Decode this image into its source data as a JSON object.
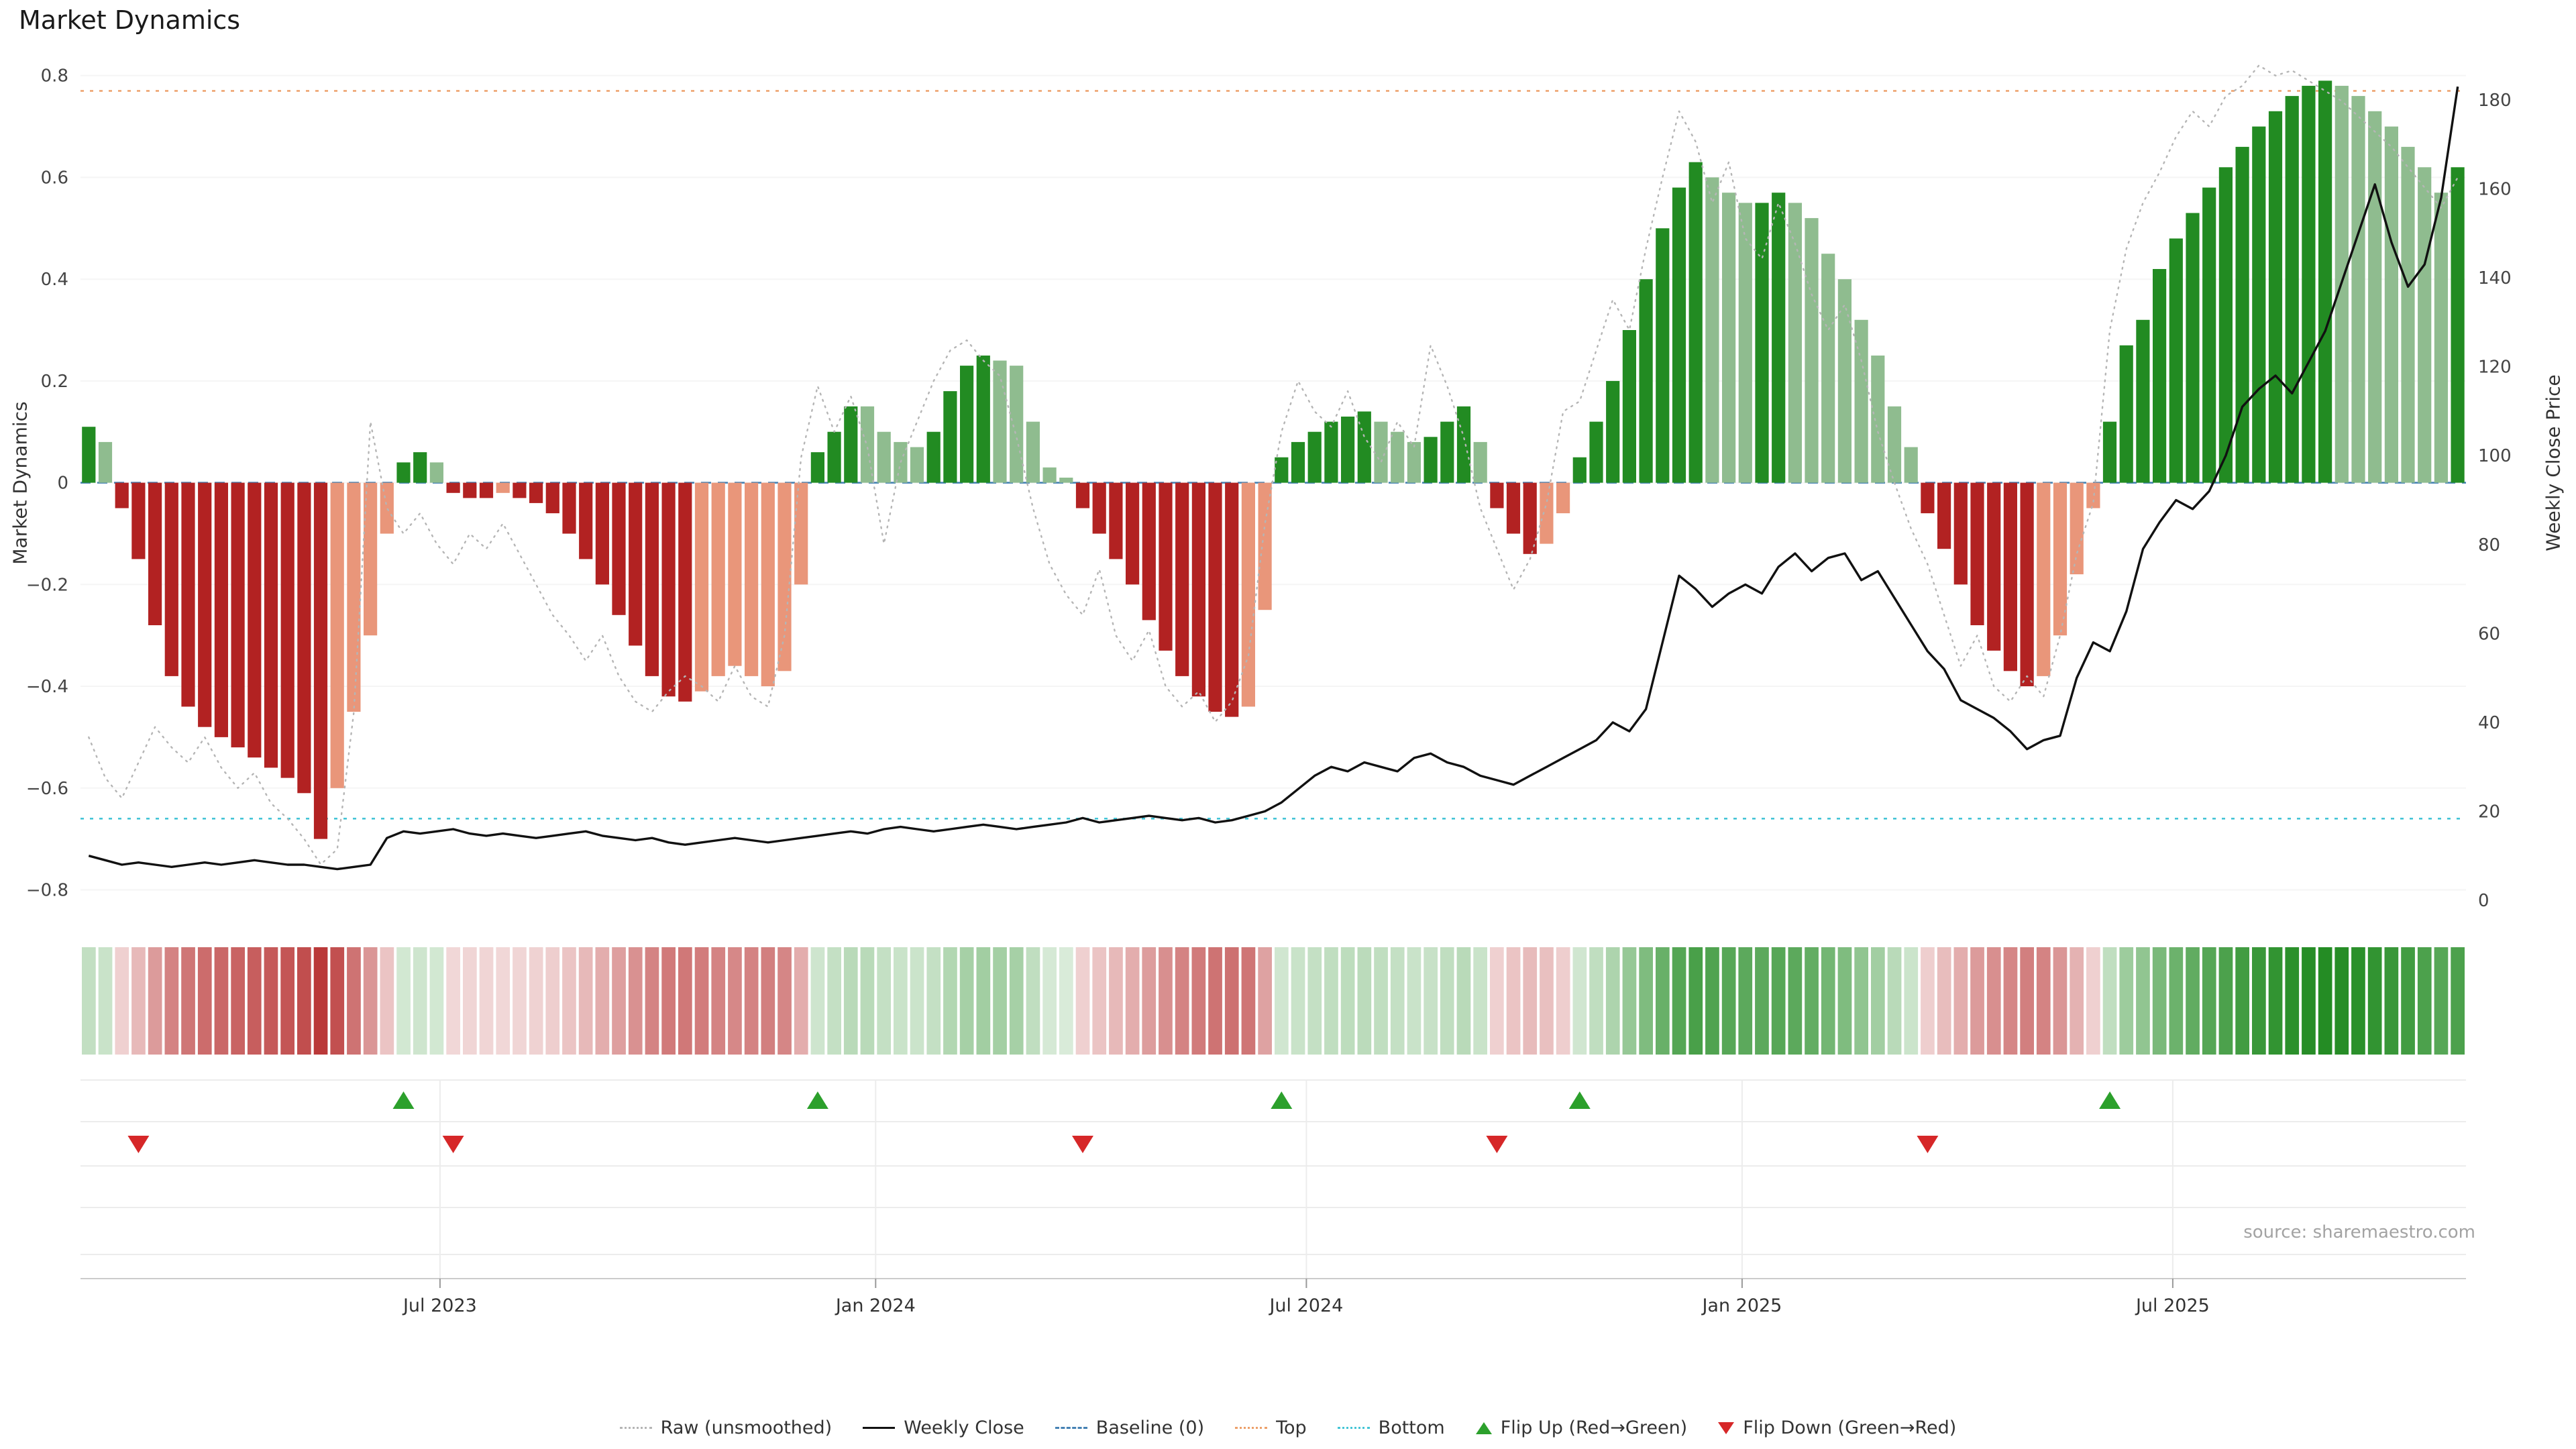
{
  "title": "Market Dynamics",
  "source": "source: sharemaestro.com",
  "axes": {
    "left_label": "Market Dynamics",
    "right_label": "Weekly Close Price",
    "left_ticks": [
      {
        "v": 0.8,
        "label": "0.8"
      },
      {
        "v": 0.6,
        "label": "0.6"
      },
      {
        "v": 0.4,
        "label": "0.4"
      },
      {
        "v": 0.2,
        "label": "0.2"
      },
      {
        "v": 0.0,
        "label": "0"
      },
      {
        "v": -0.2,
        "label": "−0.2"
      },
      {
        "v": -0.4,
        "label": "−0.4"
      },
      {
        "v": -0.6,
        "label": "−0.6"
      },
      {
        "v": -0.8,
        "label": "−0.8"
      }
    ],
    "right_ticks": [
      0,
      20,
      40,
      60,
      80,
      100,
      120,
      140,
      160,
      180
    ],
    "x_ticks": [
      {
        "week": 21.2,
        "label": "Jul 2023"
      },
      {
        "week": 47.5,
        "label": "Jan 2024"
      },
      {
        "week": 73.5,
        "label": "Jul 2024"
      },
      {
        "week": 99.8,
        "label": "Jan 2025"
      },
      {
        "week": 125.8,
        "label": "Jul 2025"
      }
    ]
  },
  "colors": {
    "dg": "#228b22",
    "lg": "#8fbc8f",
    "dr": "#b22222",
    "lr": "#e9967a",
    "raw_line": "#b5b5b5",
    "price_line": "#111111",
    "baseline": "#4682b4",
    "top": "#eda06a",
    "bottom": "#45c5d6",
    "flip_up": "#2ca02c",
    "flip_down": "#d62728",
    "grid": "#ececec",
    "spine": "#cccccc"
  },
  "legend": {
    "items": [
      {
        "label": "Raw (unsmoothed)",
        "swatch": "dotted",
        "color": "#b5b5b5"
      },
      {
        "label": "Weekly Close",
        "swatch": "solid",
        "color": "#111111"
      },
      {
        "label": "Baseline (0)",
        "swatch": "dashed",
        "color": "#4682b4"
      },
      {
        "label": "Top",
        "swatch": "dotted",
        "color": "#eda06a"
      },
      {
        "label": "Bottom",
        "swatch": "dotted",
        "color": "#45c5d6"
      },
      {
        "label": "Flip Up (Red→Green)",
        "swatch": "tri-up",
        "color": "#2ca02c"
      },
      {
        "label": "Flip Down (Green→Red)",
        "swatch": "tri-down",
        "color": "#d62728"
      }
    ]
  },
  "chart_data": {
    "type": "bar+line",
    "n_points": 144,
    "x_unit": "weeks",
    "ylim_left": [
      -0.85,
      0.84
    ],
    "ylim_right": [
      0,
      190
    ],
    "reference_lines": {
      "baseline": 0,
      "top": 0.77,
      "bottom": -0.66
    },
    "flip_up_weeks": [
      19,
      44,
      72,
      90,
      122
    ],
    "flip_down_weeks": [
      3,
      22,
      60,
      85,
      111
    ],
    "series": [
      {
        "name": "Market Dynamics (smoothed bars)",
        "type": "bar",
        "axis": "left",
        "values": [
          0.11,
          0.08,
          -0.05,
          -0.15,
          -0.28,
          -0.38,
          -0.44,
          -0.48,
          -0.5,
          -0.52,
          -0.54,
          -0.56,
          -0.58,
          -0.61,
          -0.7,
          -0.6,
          -0.45,
          -0.3,
          -0.1,
          0.04,
          0.06,
          0.04,
          -0.02,
          -0.03,
          -0.03,
          -0.02,
          -0.03,
          -0.04,
          -0.06,
          -0.1,
          -0.15,
          -0.2,
          -0.26,
          -0.32,
          -0.38,
          -0.42,
          -0.43,
          -0.41,
          -0.38,
          -0.36,
          -0.38,
          -0.4,
          -0.37,
          -0.2,
          0.06,
          0.1,
          0.15,
          0.15,
          0.1,
          0.08,
          0.07,
          0.1,
          0.18,
          0.23,
          0.25,
          0.24,
          0.23,
          0.12,
          0.03,
          0.01,
          -0.05,
          -0.1,
          -0.15,
          -0.2,
          -0.27,
          -0.33,
          -0.38,
          -0.42,
          -0.45,
          -0.46,
          -0.44,
          -0.25,
          0.05,
          0.08,
          0.1,
          0.12,
          0.13,
          0.14,
          0.12,
          0.1,
          0.08,
          0.09,
          0.12,
          0.15,
          0.08,
          -0.05,
          -0.1,
          -0.14,
          -0.12,
          -0.06,
          0.05,
          0.12,
          0.2,
          0.3,
          0.4,
          0.5,
          0.58,
          0.63,
          0.6,
          0.57,
          0.55,
          0.55,
          0.57,
          0.55,
          0.52,
          0.45,
          0.4,
          0.32,
          0.25,
          0.15,
          0.07,
          -0.06,
          -0.13,
          -0.2,
          -0.28,
          -0.33,
          -0.37,
          -0.4,
          -0.38,
          -0.3,
          -0.18,
          -0.05,
          0.12,
          0.27,
          0.32,
          0.42,
          0.48,
          0.53,
          0.58,
          0.62,
          0.66,
          0.7,
          0.73,
          0.76,
          0.78,
          0.79,
          0.78,
          0.76,
          0.73,
          0.7,
          0.66,
          0.62,
          0.57,
          0.62
        ],
        "shades": [
          "dg",
          "lg",
          "dr",
          "dr",
          "dr",
          "dr",
          "dr",
          "dr",
          "dr",
          "dr",
          "dr",
          "dr",
          "dr",
          "dr",
          "dr",
          "lr",
          "lr",
          "lr",
          "lr",
          "dg",
          "dg",
          "lg",
          "dr",
          "dr",
          "dr",
          "lr",
          "dr",
          "dr",
          "dr",
          "dr",
          "dr",
          "dr",
          "dr",
          "dr",
          "dr",
          "dr",
          "dr",
          "lr",
          "lr",
          "lr",
          "lr",
          "lr",
          "lr",
          "lr",
          "dg",
          "dg",
          "dg",
          "lg",
          "lg",
          "lg",
          "lg",
          "dg",
          "dg",
          "dg",
          "dg",
          "lg",
          "lg",
          "lg",
          "lg",
          "lg",
          "dr",
          "dr",
          "dr",
          "dr",
          "dr",
          "dr",
          "dr",
          "dr",
          "dr",
          "dr",
          "lr",
          "lr",
          "dg",
          "dg",
          "dg",
          "dg",
          "dg",
          "dg",
          "lg",
          "lg",
          "lg",
          "dg",
          "dg",
          "dg",
          "lg",
          "dr",
          "dr",
          "dr",
          "lr",
          "lr",
          "dg",
          "dg",
          "dg",
          "dg",
          "dg",
          "dg",
          "dg",
          "dg",
          "lg",
          "lg",
          "lg",
          "dg",
          "dg",
          "lg",
          "lg",
          "lg",
          "lg",
          "lg",
          "lg",
          "lg",
          "lg",
          "dr",
          "dr",
          "dr",
          "dr",
          "dr",
          "dr",
          "dr",
          "lr",
          "lr",
          "lr",
          "lr",
          "dg",
          "dg",
          "dg",
          "dg",
          "dg",
          "dg",
          "dg",
          "dg",
          "dg",
          "dg",
          "dg",
          "dg",
          "dg",
          "dg",
          "lg",
          "lg",
          "lg",
          "lg",
          "lg",
          "lg",
          "lg",
          "dg"
        ]
      },
      {
        "name": "Raw (unsmoothed)",
        "type": "line",
        "axis": "left",
        "values": [
          -0.5,
          -0.58,
          -0.62,
          -0.55,
          -0.48,
          -0.52,
          -0.55,
          -0.5,
          -0.56,
          -0.6,
          -0.57,
          -0.63,
          -0.66,
          -0.7,
          -0.75,
          -0.72,
          -0.45,
          0.12,
          -0.05,
          -0.1,
          -0.06,
          -0.12,
          -0.16,
          -0.1,
          -0.13,
          -0.08,
          -0.14,
          -0.2,
          -0.26,
          -0.3,
          -0.35,
          -0.3,
          -0.38,
          -0.43,
          -0.45,
          -0.41,
          -0.38,
          -0.4,
          -0.43,
          -0.36,
          -0.42,
          -0.44,
          -0.3,
          0.05,
          0.19,
          0.1,
          0.17,
          0.07,
          -0.12,
          0.04,
          0.12,
          0.2,
          0.26,
          0.28,
          0.24,
          0.21,
          0.09,
          -0.05,
          -0.16,
          -0.22,
          -0.26,
          -0.17,
          -0.3,
          -0.35,
          -0.29,
          -0.4,
          -0.44,
          -0.41,
          -0.47,
          -0.43,
          -0.34,
          -0.08,
          0.1,
          0.2,
          0.14,
          0.11,
          0.18,
          0.09,
          0.04,
          0.12,
          0.07,
          0.27,
          0.19,
          0.09,
          -0.05,
          -0.13,
          -0.21,
          -0.15,
          -0.04,
          0.14,
          0.16,
          0.26,
          0.36,
          0.3,
          0.46,
          0.6,
          0.73,
          0.67,
          0.55,
          0.63,
          0.48,
          0.44,
          0.55,
          0.47,
          0.37,
          0.3,
          0.35,
          0.24,
          0.1,
          0.0,
          -0.09,
          -0.16,
          -0.26,
          -0.36,
          -0.3,
          -0.4,
          -0.43,
          -0.38,
          -0.42,
          -0.3,
          -0.14,
          -0.04,
          0.3,
          0.46,
          0.55,
          0.61,
          0.68,
          0.73,
          0.7,
          0.76,
          0.78,
          0.82,
          0.8,
          0.81,
          0.79,
          0.77,
          0.75,
          0.72,
          0.69,
          0.66,
          0.62,
          0.58,
          0.54,
          0.6
        ]
      },
      {
        "name": "Weekly Close",
        "type": "line",
        "axis": "right",
        "values": [
          10,
          9,
          8,
          8.5,
          8,
          7.5,
          8,
          8.5,
          8,
          8.5,
          9,
          8.5,
          8,
          8,
          7.5,
          7,
          7.5,
          8,
          14,
          15.5,
          15,
          15.5,
          16,
          15,
          14.5,
          15,
          14.5,
          14,
          14.5,
          15,
          15.5,
          14.5,
          14,
          13.5,
          14,
          13,
          12.5,
          13,
          13.5,
          14,
          13.5,
          13,
          13.5,
          14,
          14.5,
          15,
          15.5,
          15,
          16,
          16.5,
          16,
          15.5,
          16,
          16.5,
          17,
          16.5,
          16,
          16.5,
          17,
          17.5,
          18.5,
          17.5,
          18,
          18.5,
          19,
          18.5,
          18,
          18.5,
          17.5,
          18,
          19,
          20,
          22,
          25,
          28,
          30,
          29,
          31,
          30,
          29,
          32,
          33,
          31,
          30,
          28,
          27,
          26,
          28,
          30,
          32,
          34,
          36,
          40,
          38,
          43,
          58,
          73,
          70,
          66,
          69,
          71,
          69,
          75,
          78,
          74,
          77,
          78,
          72,
          74,
          68,
          62,
          56,
          52,
          45,
          43,
          41,
          38,
          34,
          36,
          37,
          50,
          58,
          56,
          65,
          79,
          85,
          90,
          88,
          92,
          100,
          111,
          115,
          118,
          114,
          121,
          128,
          139,
          150,
          161,
          148,
          138,
          143,
          158,
          183
        ]
      }
    ]
  }
}
